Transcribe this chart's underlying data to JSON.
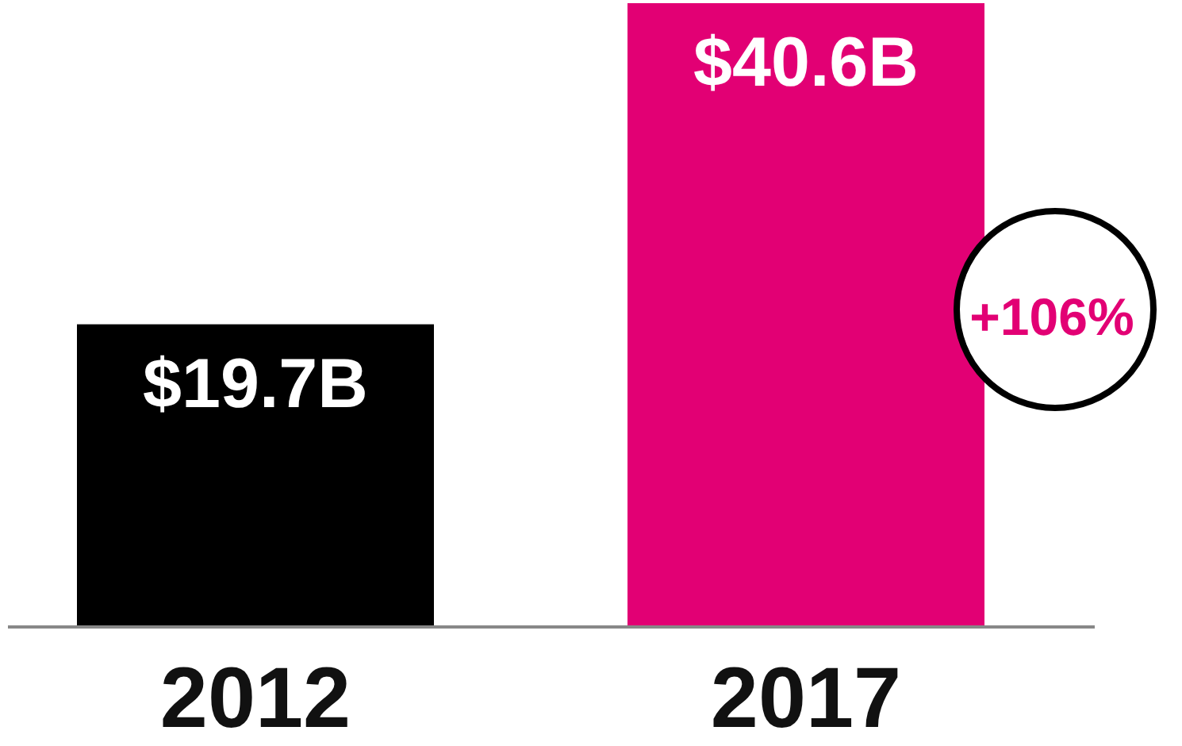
{
  "chart_data": {
    "type": "bar",
    "categories": [
      "2012",
      "2017"
    ],
    "values": [
      19.7,
      40.6
    ],
    "colors": [
      "#000000",
      "#e20074"
    ],
    "value_labels": [
      "$19.7B",
      "$40.6B"
    ],
    "annotations": [
      "+106%"
    ]
  }
}
